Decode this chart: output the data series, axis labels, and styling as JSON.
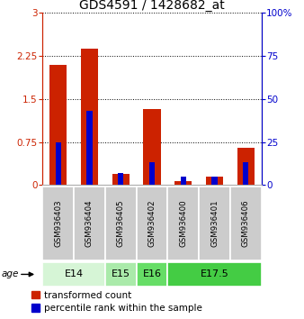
{
  "title": "GDS4591 / 1428682_at",
  "samples": [
    "GSM936403",
    "GSM936404",
    "GSM936405",
    "GSM936402",
    "GSM936400",
    "GSM936401",
    "GSM936406"
  ],
  "red_values": [
    2.1,
    2.37,
    0.2,
    1.32,
    0.07,
    0.15,
    0.65
  ],
  "blue_values_pct": [
    25,
    43,
    7,
    13,
    5,
    5,
    13
  ],
  "ylim_left": [
    0,
    3
  ],
  "ylim_right": [
    0,
    100
  ],
  "yticks_left": [
    0,
    0.75,
    1.5,
    2.25,
    3
  ],
  "yticks_right": [
    0,
    25,
    50,
    75,
    100
  ],
  "ytick_labels_left": [
    "0",
    "0.75",
    "1.5",
    "2.25",
    "3"
  ],
  "ytick_labels_right": [
    "0",
    "25",
    "50",
    "75",
    "100%"
  ],
  "age_groups": [
    {
      "label": "E14",
      "indices": [
        0,
        1
      ],
      "color": "#d6f5d6"
    },
    {
      "label": "E15",
      "indices": [
        2
      ],
      "color": "#aaeaaa"
    },
    {
      "label": "E16",
      "indices": [
        3
      ],
      "color": "#66dd66"
    },
    {
      "label": "E17.5",
      "indices": [
        4,
        5,
        6
      ],
      "color": "#44cc44"
    }
  ],
  "bar_color_red": "#cc2200",
  "bar_color_blue": "#0000cc",
  "bar_width": 0.55,
  "blue_bar_width": 0.18,
  "grid_color": "#000000",
  "legend_red_label": "transformed count",
  "legend_blue_label": "percentile rank within the sample",
  "age_label": "age",
  "sample_box_color": "#cccccc",
  "background_color": "#ffffff",
  "title_fontsize": 10,
  "tick_fontsize": 7.5,
  "sample_fontsize": 6.2,
  "age_fontsize": 8,
  "legend_fontsize": 7.5
}
